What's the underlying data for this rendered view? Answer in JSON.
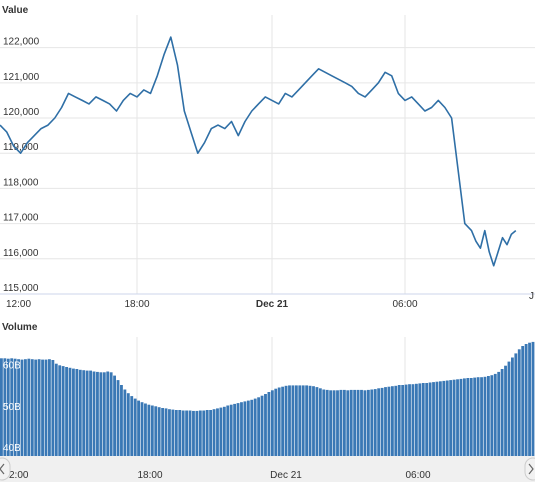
{
  "chart_data": [
    {
      "type": "line",
      "title": "Value",
      "y_ticks": [
        115000,
        116000,
        117000,
        118000,
        119000,
        120000,
        121000,
        122000
      ],
      "y_tick_labels": [
        "115,000",
        "116,000",
        "117,000",
        "118,000",
        "119,000",
        "120,000",
        "121,000",
        "122,000"
      ],
      "ylim": [
        115000,
        122700
      ],
      "x_ticks": [
        0,
        6,
        12,
        18
      ],
      "x_tick_labels": [
        "12:00",
        "18:00",
        "Dec 21",
        "06:00"
      ],
      "x_tick_bold": [
        false,
        false,
        true,
        false
      ],
      "x_edge_label": "J",
      "xlim": [
        0,
        23
      ],
      "grid": true,
      "series": [
        {
          "x": [
            0,
            0.3,
            0.6,
            0.9,
            1.2,
            1.5,
            1.8,
            2.1,
            2.4,
            2.7,
            3.0,
            3.3,
            3.6,
            3.9,
            4.2,
            4.5,
            4.8,
            5.1,
            5.4,
            5.7,
            6.0,
            6.3,
            6.6,
            6.9,
            7.2,
            7.5,
            7.8,
            8.1,
            8.4,
            8.7,
            9.0,
            9.3,
            9.6,
            9.9,
            10.2,
            10.5,
            10.8,
            11.1,
            11.4,
            11.7,
            12.0,
            12.3,
            12.6,
            12.9,
            13.2,
            13.5,
            13.8,
            14.1,
            14.4,
            14.7,
            15.0,
            15.3,
            15.6,
            15.9,
            16.2,
            16.5,
            16.8,
            17.1,
            17.4,
            17.7,
            18.0,
            18.3,
            18.6,
            18.9,
            19.2,
            19.5,
            19.8,
            20.1,
            20.4,
            20.7,
            21.0,
            21.2,
            21.4,
            21.6,
            21.8,
            22.0,
            22.2,
            22.4,
            22.6,
            22.8,
            23.0
          ],
          "values": [
            119800,
            119600,
            119200,
            119000,
            119300,
            119500,
            119700,
            119800,
            120000,
            120300,
            120700,
            120600,
            120500,
            120400,
            120600,
            120500,
            120400,
            120200,
            120500,
            120700,
            120600,
            120800,
            120700,
            121200,
            121800,
            122300,
            121500,
            120200,
            119600,
            119000,
            119300,
            119700,
            119800,
            119700,
            119900,
            119500,
            119900,
            120200,
            120400,
            120600,
            120500,
            120400,
            120700,
            120600,
            120800,
            121000,
            121200,
            121400,
            121300,
            121200,
            121100,
            121000,
            120900,
            120700,
            120600,
            120800,
            121000,
            121300,
            121200,
            120700,
            120500,
            120600,
            120400,
            120200,
            120300,
            120500,
            120300,
            120000,
            118500,
            117000,
            116800,
            116500,
            116300,
            116800,
            116200,
            115800,
            116200,
            116600,
            116400,
            116700,
            116800
          ]
        }
      ]
    },
    {
      "type": "bar",
      "title": "Volume",
      "y_ticks": [
        40,
        50,
        60
      ],
      "y_tick_labels": [
        "40B",
        "50B",
        "60B"
      ],
      "ylim": [
        38,
        67
      ],
      "x_tick_labels": [
        "2:00",
        "18:00",
        "Dec 21",
        "06:00"
      ],
      "series": [
        {
          "values": [
            61.8,
            61.8,
            61.7,
            61.8,
            61.7,
            61.6,
            61.5,
            61.6,
            61.7,
            61.6,
            61.5,
            61.6,
            61.5,
            61.5,
            61.6,
            61.4,
            60.5,
            60.1,
            59.9,
            59.7,
            59.5,
            59.3,
            59.2,
            59.0,
            58.9,
            58.8,
            58.8,
            58.6,
            58.5,
            58.4,
            58.4,
            58.6,
            58.4,
            57.6,
            56.5,
            55.3,
            54.2,
            53.3,
            52.6,
            52.0,
            51.5,
            51.1,
            50.8,
            50.5,
            50.3,
            50.1,
            49.9,
            49.7,
            49.6,
            49.4,
            49.3,
            49.2,
            49.2,
            49.1,
            49.1,
            49.1,
            49.0,
            49.0,
            49.1,
            49.1,
            49.2,
            49.2,
            49.4,
            49.6,
            49.8,
            50.0,
            50.3,
            50.5,
            50.7,
            50.9,
            51.1,
            51.3,
            51.5,
            51.7,
            52.0,
            52.3,
            52.7,
            53.1,
            53.6,
            54.0,
            54.4,
            54.7,
            54.9,
            55.1,
            55.2,
            55.2,
            55.2,
            55.2,
            55.2,
            55.2,
            55.1,
            55.0,
            54.8,
            54.5,
            54.2,
            54.1,
            54.0,
            54.0,
            54.0,
            54.1,
            54.1,
            54.0,
            54.1,
            54.1,
            54.1,
            54.1,
            54.0,
            54.1,
            54.2,
            54.3,
            54.5,
            54.6,
            54.8,
            54.9,
            55.0,
            55.1,
            55.3,
            55.3,
            55.4,
            55.5,
            55.5,
            55.6,
            55.7,
            55.8,
            55.8,
            55.9,
            56.0,
            56.1,
            56.2,
            56.3,
            56.4,
            56.5,
            56.6,
            56.7,
            56.8,
            56.9,
            57.0,
            57.0,
            57.1,
            57.2,
            57.2,
            57.3,
            57.5,
            57.7,
            58.0,
            58.5,
            59.2,
            60.0,
            61.0,
            62.0,
            63.0,
            64.0,
            64.8,
            65.3,
            65.6,
            65.8
          ]
        }
      ]
    }
  ]
}
